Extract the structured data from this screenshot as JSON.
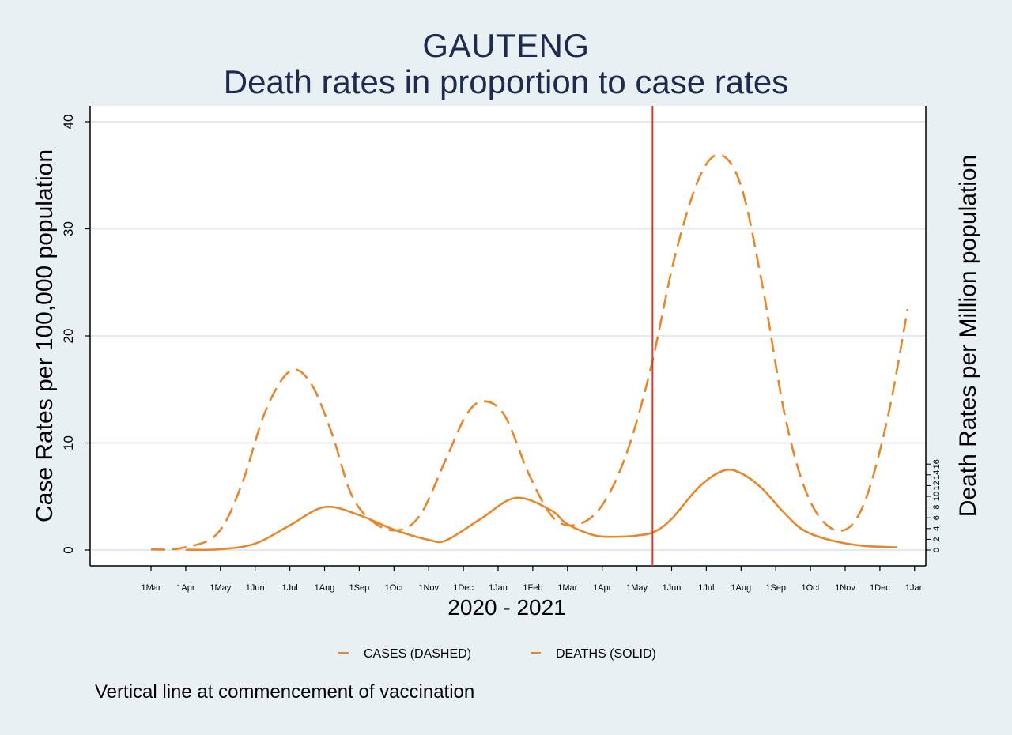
{
  "chart_data": {
    "type": "line",
    "title": "GAUTENG",
    "subtitle": "Death rates in proportion to case rates",
    "xlabel": "2020 - 2021",
    "ylabel_left": "Case Rates per 100,000 population",
    "ylabel_right": "Death Rates per Million population",
    "note": "Vertical line at commencement of vaccination",
    "x_ticks": [
      "1Mar",
      "1Apr",
      "1May",
      "1Jun",
      "1Jul",
      "1Aug",
      "1Sep",
      "1Oct",
      "1Nov",
      "1Dec",
      "1Jan",
      "1Feb",
      "1Mar",
      "1Apr",
      "1May",
      "1Jun",
      "1Jul",
      "1Aug",
      "1Sep",
      "1Oct",
      "1Nov",
      "1Dec",
      "1Jan"
    ],
    "y_left_ticks": [
      0,
      10,
      20,
      30,
      40
    ],
    "y_left_range": [
      0,
      40
    ],
    "y_right_ticks": [
      0,
      2,
      4,
      6,
      8,
      10,
      12,
      14,
      16
    ],
    "y_right_range": [
      0,
      40
    ],
    "grid": true,
    "legend_placement": "bottom",
    "vaccination_line_x": 14.45,
    "colors": {
      "cases": "#e8862a",
      "deaths": "#e8862a",
      "vaccination_line": "#d63a2f",
      "title": "#1e2b4f",
      "grid": "#e3eaee"
    },
    "series": [
      {
        "name": "CASES (DASHED)",
        "axis": "left",
        "dash": true,
        "points": [
          [
            0,
            0.05
          ],
          [
            0.9,
            0.2
          ],
          [
            1.9,
            1.5
          ],
          [
            2.6,
            6
          ],
          [
            3.3,
            13
          ],
          [
            4.0,
            16.7
          ],
          [
            4.6,
            15.6
          ],
          [
            5.2,
            11
          ],
          [
            5.8,
            5
          ],
          [
            6.5,
            2.4
          ],
          [
            7.2,
            1.9
          ],
          [
            7.8,
            3.5
          ],
          [
            8.5,
            8.5
          ],
          [
            9.1,
            12.7
          ],
          [
            9.6,
            13.9
          ],
          [
            10.2,
            12.5
          ],
          [
            10.9,
            7
          ],
          [
            11.6,
            3
          ],
          [
            12.3,
            2.4
          ],
          [
            13.0,
            4.2
          ],
          [
            13.7,
            9
          ],
          [
            14.4,
            17
          ],
          [
            15.1,
            27.5
          ],
          [
            15.8,
            34.8
          ],
          [
            16.4,
            36.9
          ],
          [
            17.0,
            34
          ],
          [
            17.6,
            25
          ],
          [
            18.3,
            12
          ],
          [
            19.0,
            4.5
          ],
          [
            19.8,
            1.8
          ],
          [
            20.5,
            4
          ],
          [
            21.2,
            12
          ],
          [
            21.8,
            22.5
          ]
        ]
      },
      {
        "name": "DEATHS (SOLID)",
        "axis": "right",
        "dash": false,
        "points": [
          [
            1.0,
            0.05
          ],
          [
            2.0,
            0.15
          ],
          [
            3.0,
            1.2
          ],
          [
            4.0,
            4.6
          ],
          [
            5.0,
            8.0
          ],
          [
            6.0,
            6.5
          ],
          [
            7.0,
            3.8
          ],
          [
            8.0,
            1.9
          ],
          [
            8.5,
            1.8
          ],
          [
            9.5,
            5.8
          ],
          [
            10.5,
            9.7
          ],
          [
            11.5,
            7.5
          ],
          [
            12.0,
            4.8
          ],
          [
            12.8,
            2.7
          ],
          [
            13.5,
            2.5
          ],
          [
            14.0,
            2.7
          ],
          [
            14.5,
            3.4
          ],
          [
            15.0,
            5.8
          ],
          [
            15.8,
            11.8
          ],
          [
            16.5,
            14.8
          ],
          [
            17.0,
            14.3
          ],
          [
            17.6,
            11.5
          ],
          [
            18.2,
            7.2
          ],
          [
            18.8,
            3.7
          ],
          [
            19.6,
            1.8
          ],
          [
            20.5,
            0.8
          ],
          [
            21.5,
            0.5
          ]
        ]
      }
    ]
  }
}
